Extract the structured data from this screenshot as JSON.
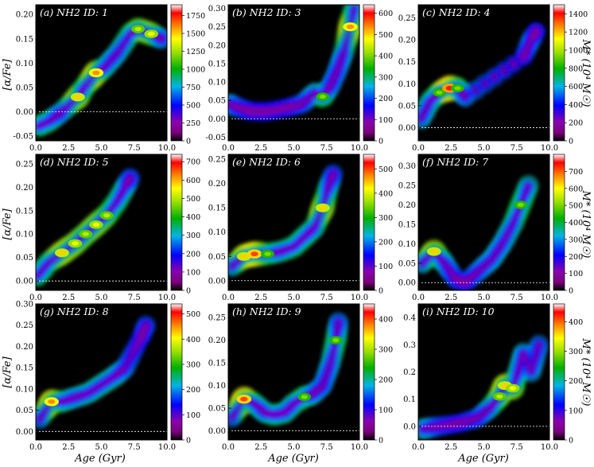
{
  "figure": {
    "xlabel": "Age (Gyr)",
    "ylabel": "[α/Fe]",
    "colorbar_label": "M* (10⁴ M☉)"
  },
  "chart_data": [
    {
      "type": "heatmap",
      "title": "(a) NH2 ID: 1",
      "xlim": [
        0,
        10
      ],
      "ylim": [
        -0.06,
        0.22
      ],
      "xticks": [
        "0.0",
        "2.5",
        "5.0",
        "7.5",
        "10.0"
      ],
      "yticks": [
        "-0.05",
        "0.00",
        "0.05",
        "0.10",
        "0.15",
        "0.20"
      ],
      "colorbar": {
        "range": [
          0,
          1900
        ],
        "ticks": [
          "0",
          "250",
          "500",
          "750",
          "1000",
          "1250",
          "1500",
          "1750"
        ]
      },
      "ridge": [
        [
          0.2,
          -0.03,
          0.55
        ],
        [
          1.0,
          -0.02,
          0.55
        ],
        [
          2.0,
          0.0,
          0.4
        ],
        [
          3.2,
          0.03,
          0.75
        ],
        [
          3.7,
          0.05,
          0.55
        ],
        [
          4.6,
          0.08,
          0.8
        ],
        [
          5.2,
          0.09,
          0.5
        ],
        [
          6.2,
          0.12,
          0.45
        ],
        [
          7.2,
          0.16,
          0.55
        ],
        [
          7.8,
          0.17,
          0.65
        ],
        [
          8.8,
          0.16,
          0.7
        ],
        [
          9.6,
          0.15,
          0.4
        ]
      ],
      "reference_y": 0.0
    },
    {
      "type": "heatmap",
      "title": "(b) NH2 ID: 3",
      "xlim": [
        0,
        10
      ],
      "ylim": [
        -0.06,
        0.31
      ],
      "xticks": [
        "0.0",
        "2.5",
        "5.0",
        "7.5",
        "10.0"
      ],
      "yticks": [
        "-0.05",
        "0.00",
        "0.05",
        "0.10",
        "0.15",
        "0.20",
        "0.25",
        "0.30"
      ],
      "colorbar": {
        "range": [
          0,
          640
        ],
        "ticks": [
          "0",
          "100",
          "200",
          "300",
          "400",
          "500",
          "600"
        ]
      },
      "ridge": [
        [
          0.1,
          0.04,
          0.45
        ],
        [
          0.8,
          0.03,
          0.35
        ],
        [
          1.8,
          0.02,
          0.3
        ],
        [
          3.0,
          0.02,
          0.3
        ],
        [
          4.5,
          0.03,
          0.3
        ],
        [
          5.6,
          0.04,
          0.35
        ],
        [
          6.6,
          0.07,
          0.45
        ],
        [
          7.2,
          0.06,
          0.6
        ],
        [
          7.8,
          0.09,
          0.4
        ],
        [
          8.3,
          0.13,
          0.4
        ],
        [
          8.8,
          0.18,
          0.45
        ],
        [
          9.3,
          0.25,
          0.8
        ],
        [
          9.6,
          0.3,
          0.55
        ]
      ],
      "reference_y": 0.0
    },
    {
      "type": "heatmap",
      "title": "(c) NH2 ID: 4",
      "xlim": [
        0,
        10
      ],
      "ylim": [
        -0.03,
        0.28
      ],
      "xticks": [
        "0.0",
        "2.5",
        "5.0",
        "7.5",
        "10.0"
      ],
      "yticks": [
        "0.00",
        "0.05",
        "0.10",
        "0.15",
        "0.20",
        "0.25"
      ],
      "colorbar": {
        "range": [
          0,
          1500
        ],
        "ticks": [
          "0",
          "200",
          "400",
          "600",
          "800",
          "1000",
          "1200",
          "1400"
        ]
      },
      "ridge": [
        [
          0.2,
          0.02,
          0.45
        ],
        [
          0.9,
          0.06,
          0.5
        ],
        [
          1.6,
          0.08,
          0.6
        ],
        [
          2.4,
          0.09,
          0.9
        ],
        [
          3.0,
          0.09,
          0.6
        ],
        [
          3.6,
          0.07,
          0.4
        ],
        [
          8.0,
          0.16,
          0.3
        ],
        [
          8.6,
          0.2,
          0.4
        ],
        [
          9.0,
          0.22,
          0.3
        ]
      ],
      "reference_y": 0.0
    },
    {
      "type": "heatmap",
      "title": "(d) NH2 ID: 5",
      "xlim": [
        0,
        10
      ],
      "ylim": [
        -0.02,
        0.27
      ],
      "xticks": [
        "0.0",
        "2.5",
        "5.0",
        "7.5",
        "10.0"
      ],
      "yticks": [
        "0.00",
        "0.05",
        "0.10",
        "0.15",
        "0.20",
        "0.25"
      ],
      "colorbar": {
        "range": [
          0,
          740
        ],
        "ticks": [
          "0",
          "100",
          "200",
          "300",
          "400",
          "500",
          "600",
          "700"
        ]
      },
      "ridge": [
        [
          0.1,
          0.01,
          0.55
        ],
        [
          1.0,
          0.04,
          0.55
        ],
        [
          2.0,
          0.06,
          0.75
        ],
        [
          3.0,
          0.08,
          0.7
        ],
        [
          3.8,
          0.1,
          0.65
        ],
        [
          4.6,
          0.12,
          0.7
        ],
        [
          5.4,
          0.14,
          0.65
        ],
        [
          6.2,
          0.17,
          0.55
        ],
        [
          6.8,
          0.2,
          0.5
        ],
        [
          7.2,
          0.22,
          0.35
        ]
      ],
      "reference_y": 0.0
    },
    {
      "type": "heatmap",
      "title": "(e) NH2 ID: 6",
      "xlim": [
        0,
        10
      ],
      "ylim": [
        -0.02,
        0.26
      ],
      "xticks": [
        "0.0",
        "2.5",
        "5.0",
        "7.5",
        "10.0"
      ],
      "yticks": [
        "0.00",
        "0.05",
        "0.10",
        "0.15",
        "0.20",
        "0.25"
      ],
      "colorbar": {
        "range": [
          0,
          560
        ],
        "ticks": [
          "0",
          "100",
          "200",
          "300",
          "400",
          "500"
        ]
      },
      "ridge": [
        [
          0.3,
          0.03,
          0.45
        ],
        [
          1.2,
          0.05,
          0.75
        ],
        [
          2.0,
          0.055,
          0.85
        ],
        [
          3.0,
          0.055,
          0.6
        ],
        [
          4.0,
          0.06,
          0.5
        ],
        [
          5.0,
          0.07,
          0.55
        ],
        [
          5.8,
          0.09,
          0.55
        ],
        [
          6.6,
          0.11,
          0.5
        ],
        [
          7.2,
          0.15,
          0.75
        ],
        [
          7.6,
          0.19,
          0.5
        ],
        [
          8.0,
          0.22,
          0.35
        ]
      ],
      "reference_y": 0.0
    },
    {
      "type": "heatmap",
      "title": "(f) NH2 ID: 7",
      "xlim": [
        0,
        10
      ],
      "ylim": [
        -0.02,
        0.33
      ],
      "xticks": [
        "0.0",
        "2.5",
        "5.0",
        "7.5",
        "10.0"
      ],
      "yticks": [
        "0.00",
        "0.05",
        "0.10",
        "0.15",
        "0.20",
        "0.25",
        "0.30"
      ],
      "colorbar": {
        "range": [
          0,
          800
        ],
        "ticks": [
          "0",
          "100",
          "200",
          "300",
          "400",
          "500",
          "600",
          "700"
        ]
      },
      "ridge": [
        [
          0.3,
          0.05,
          0.45
        ],
        [
          1.2,
          0.08,
          0.75
        ],
        [
          2.0,
          0.05,
          0.45
        ],
        [
          2.8,
          0.01,
          0.35
        ],
        [
          3.6,
          0.0,
          0.3
        ],
        [
          4.6,
          0.03,
          0.4
        ],
        [
          5.6,
          0.06,
          0.45
        ],
        [
          6.4,
          0.1,
          0.45
        ],
        [
          7.2,
          0.15,
          0.5
        ],
        [
          7.8,
          0.2,
          0.6
        ],
        [
          8.4,
          0.25,
          0.5
        ]
      ],
      "reference_y": 0.0
    },
    {
      "type": "heatmap",
      "title": "(g) NH2 ID: 8",
      "xlim": [
        0,
        10
      ],
      "ylim": [
        -0.02,
        0.3
      ],
      "xticks": [
        "0.0",
        "2.5",
        "5.0",
        "7.5",
        "10.0"
      ],
      "yticks": [
        "0.00",
        "0.05",
        "0.10",
        "0.15",
        "0.20",
        "0.25",
        "0.30"
      ],
      "colorbar": {
        "range": [
          0,
          540
        ],
        "ticks": [
          "0",
          "100",
          "200",
          "300",
          "400",
          "500"
        ]
      },
      "ridge": [
        [
          0.3,
          0.03,
          0.4
        ],
        [
          1.2,
          0.07,
          0.8
        ],
        [
          2.0,
          0.07,
          0.55
        ],
        [
          3.0,
          0.08,
          0.45
        ],
        [
          4.0,
          0.09,
          0.5
        ],
        [
          5.0,
          0.11,
          0.5
        ],
        [
          6.0,
          0.13,
          0.5
        ],
        [
          6.8,
          0.15,
          0.4
        ],
        [
          8.0,
          0.22,
          0.3
        ],
        [
          8.4,
          0.25,
          0.35
        ]
      ],
      "reference_y": 0.0
    },
    {
      "type": "heatmap",
      "title": "(h) NH2 ID: 9",
      "xlim": [
        0,
        10
      ],
      "ylim": [
        -0.02,
        0.28
      ],
      "xticks": [
        "0.0",
        "2.5",
        "5.0",
        "7.5",
        "10.0"
      ],
      "yticks": [
        "0.00",
        "0.05",
        "0.10",
        "0.15",
        "0.20",
        "0.25"
      ],
      "colorbar": {
        "range": [
          0,
          450
        ],
        "ticks": [
          "0",
          "100",
          "200",
          "300",
          "400"
        ]
      },
      "ridge": [
        [
          0.3,
          0.03,
          0.4
        ],
        [
          1.2,
          0.07,
          0.85
        ],
        [
          2.0,
          0.06,
          0.55
        ],
        [
          2.8,
          0.04,
          0.45
        ],
        [
          3.5,
          0.035,
          0.55
        ],
        [
          4.3,
          0.04,
          0.5
        ],
        [
          5.0,
          0.06,
          0.5
        ],
        [
          5.8,
          0.075,
          0.6
        ],
        [
          6.4,
          0.08,
          0.45
        ],
        [
          7.2,
          0.1,
          0.4
        ],
        [
          7.8,
          0.15,
          0.45
        ],
        [
          8.2,
          0.2,
          0.6
        ],
        [
          8.4,
          0.24,
          0.4
        ]
      ],
      "reference_y": 0.0
    },
    {
      "type": "heatmap",
      "title": "(i) NH2 ID: 10",
      "xlim": [
        0,
        10
      ],
      "ylim": [
        -0.05,
        0.45
      ],
      "xticks": [
        "0.0",
        "2.5",
        "5.0",
        "7.5",
        "10.0"
      ],
      "yticks": [
        "0.0",
        "0.1",
        "0.2",
        "0.3",
        "0.4"
      ],
      "colorbar": {
        "range": [
          0,
          460
        ],
        "ticks": [
          "0",
          "100",
          "200",
          "300",
          "400"
        ]
      },
      "ridge": [
        [
          0.3,
          -0.01,
          0.5
        ],
        [
          1.5,
          0.0,
          0.35
        ],
        [
          3.0,
          0.01,
          0.3
        ],
        [
          4.5,
          0.03,
          0.35
        ],
        [
          5.5,
          0.07,
          0.45
        ],
        [
          6.2,
          0.11,
          0.65
        ],
        [
          6.6,
          0.15,
          0.75
        ],
        [
          7.2,
          0.14,
          0.7
        ],
        [
          7.6,
          0.2,
          0.5
        ],
        [
          8.0,
          0.27,
          0.45
        ],
        [
          8.6,
          0.2,
          0.45
        ],
        [
          9.2,
          0.3,
          0.4
        ]
      ],
      "reference_y": 0.0
    }
  ]
}
